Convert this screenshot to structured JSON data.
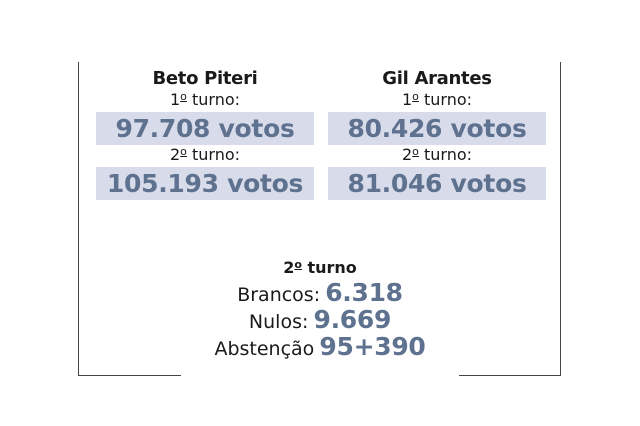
{
  "candidates": [
    {
      "name": "Beto Piteri",
      "first_round": {
        "ordinal": "1",
        "suffix": "o",
        "label": " turno:",
        "votes": "97.708 votos"
      },
      "second_round": {
        "ordinal": "2",
        "suffix": "o",
        "label": " turno:",
        "votes": "105.193 votos"
      }
    },
    {
      "name": "Gil Arantes",
      "first_round": {
        "ordinal": "1",
        "suffix": "o",
        "label": " turno:",
        "votes": "80.426 votos"
      },
      "second_round": {
        "ordinal": "2",
        "suffix": "o",
        "label": " turno:",
        "votes": "81.046 votos"
      }
    }
  ],
  "summary": {
    "title_ordinal": "2",
    "title_suffix": "o",
    "title_text": " turno",
    "rows": [
      {
        "label": "Brancos:",
        "value": "6.318"
      },
      {
        "label": "Nulos:",
        "value": "9.669"
      },
      {
        "label": "Abstenção",
        "value": "95+390"
      }
    ]
  },
  "colors": {
    "value_blue": "#5e7290",
    "box_fill": "#d8dbe9",
    "frame": "#444444"
  }
}
